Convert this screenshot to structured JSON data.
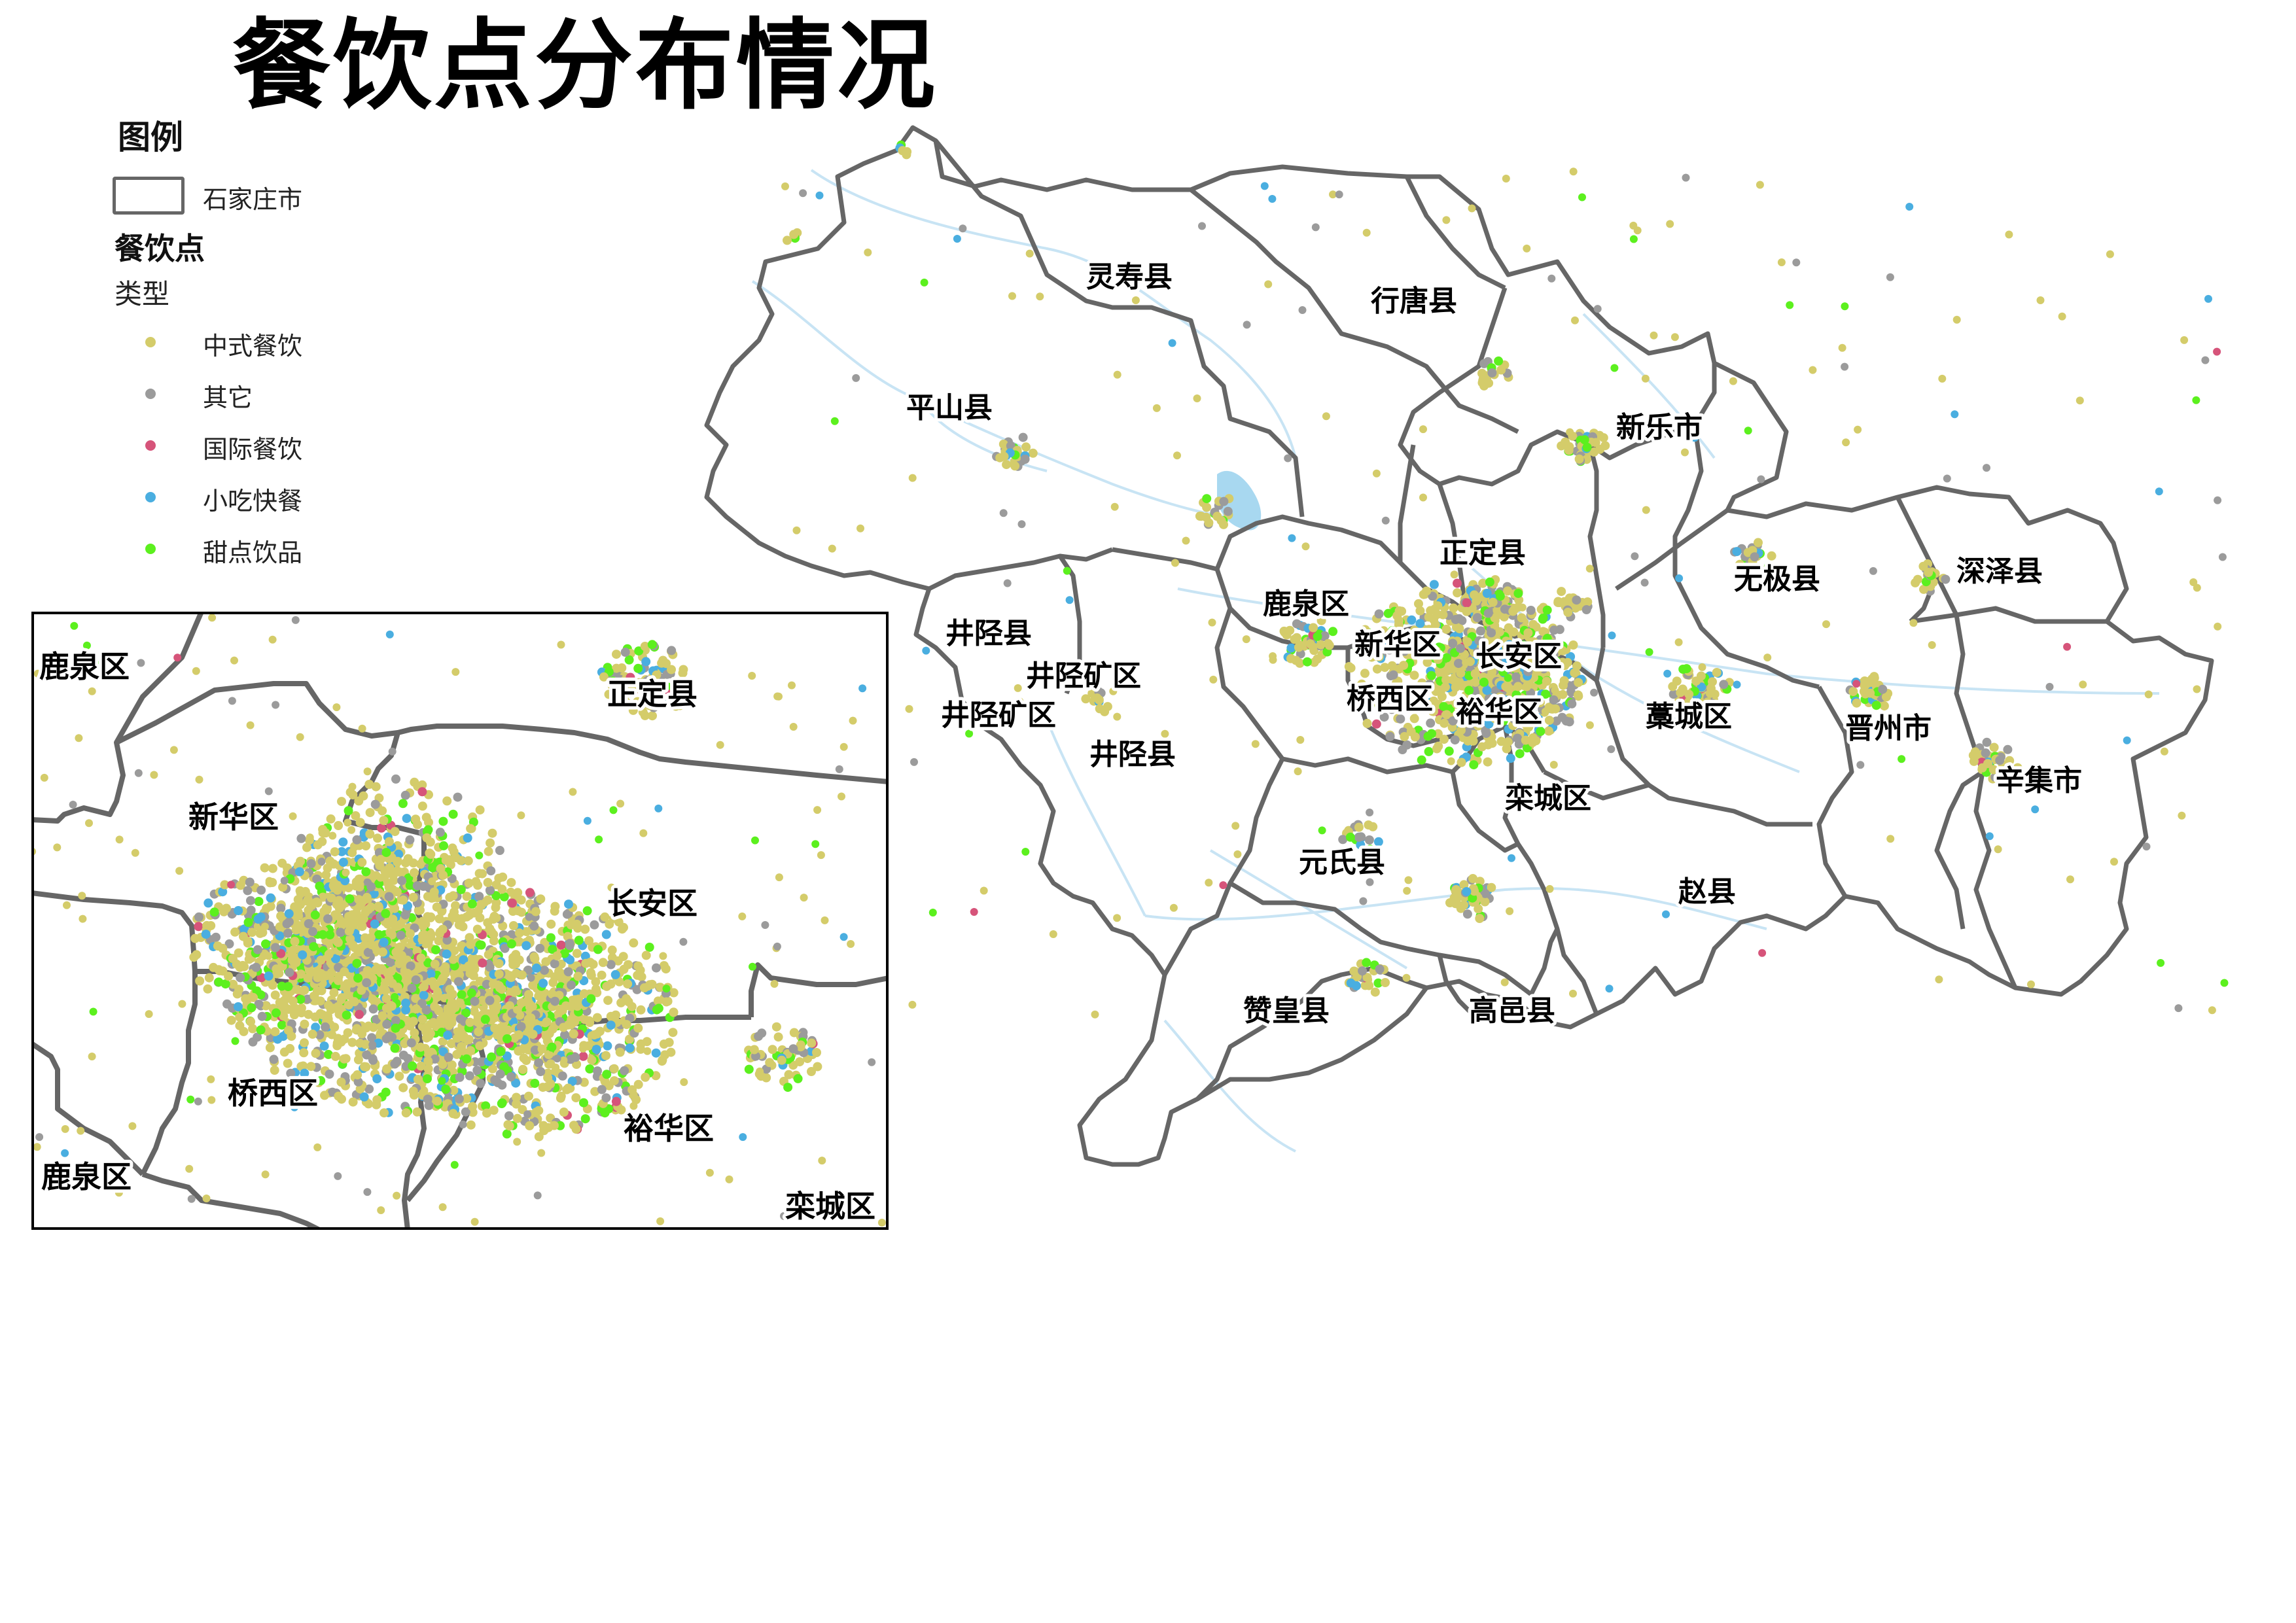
{
  "title": "餐饮点分布情况",
  "legend": {
    "heading": "图例",
    "boundary_label": "石家庄市",
    "layer_title": "餐饮点",
    "field_label": "类型",
    "categories": [
      {
        "label": "中式餐饮",
        "color": "#d4cc6a"
      },
      {
        "label": "其它",
        "color": "#9b9b9b"
      },
      {
        "label": "国际餐饮",
        "color": "#d6547a"
      },
      {
        "label": "小吃快餐",
        "color": "#4aaee0"
      },
      {
        "label": "甜点饮品",
        "color": "#5cf01e"
      }
    ]
  },
  "main_map": {
    "labels": [
      "灵寿县",
      "行唐县",
      "平山县",
      "新乐市",
      "正定县",
      "无极县",
      "深泽县",
      "鹿泉区",
      "井陉县",
      "新华区",
      "长安区",
      "井陉矿区",
      "井陉矿区",
      "桥西区",
      "裕华区",
      "藁城区",
      "晋州市",
      "井陉县",
      "辛集市",
      "栾城区",
      "元氏县",
      "赵县",
      "赞皇县",
      "高邑县"
    ]
  },
  "inset_map": {
    "labels": [
      "鹿泉区",
      "正定县",
      "新华区",
      "长安区",
      "桥西区",
      "裕华区",
      "鹿泉区",
      "栾城区"
    ]
  },
  "colors": {
    "boundary": "#666666",
    "river": "#c8e4f4",
    "lake": "#a8d8f0"
  }
}
